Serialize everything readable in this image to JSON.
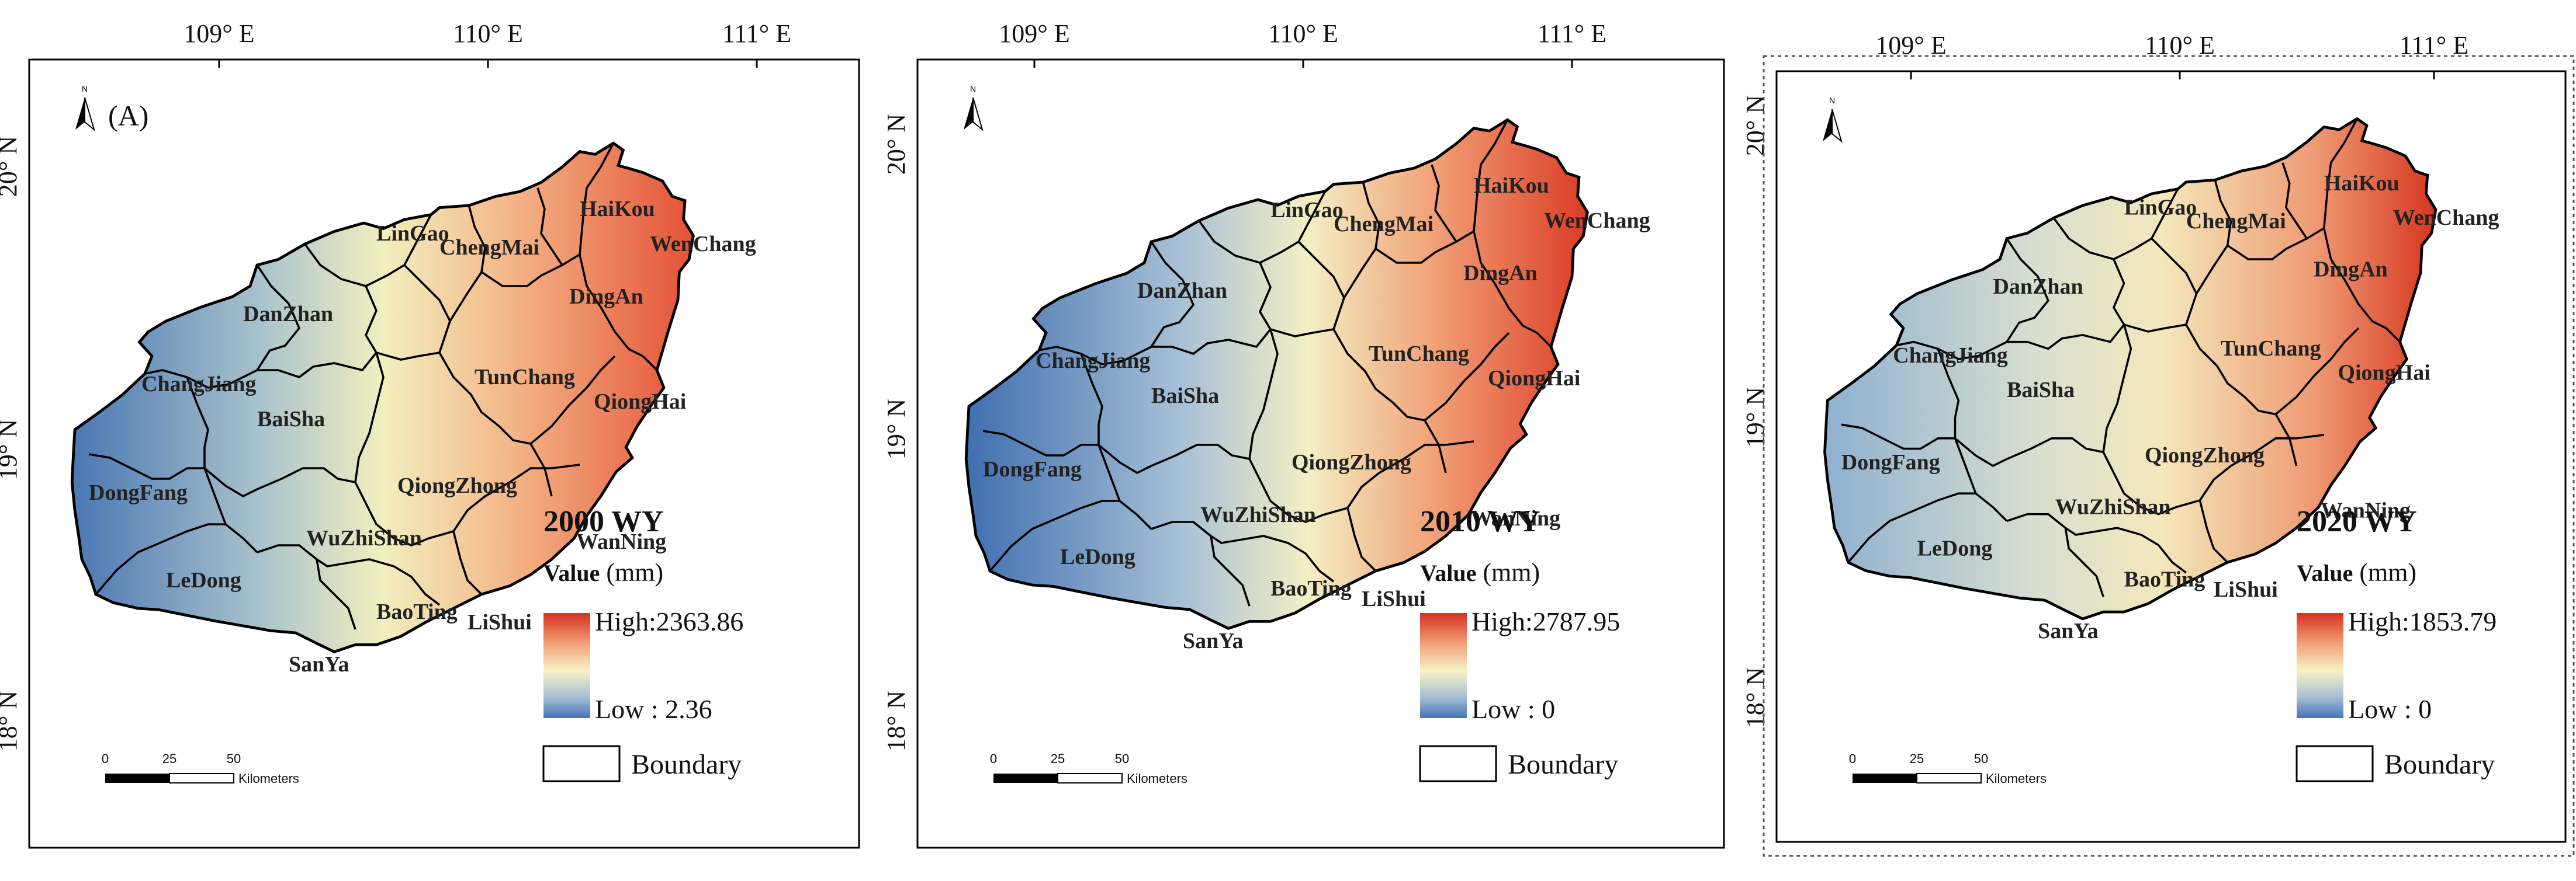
{
  "longitude_labels": [
    "109° E",
    "110° E",
    "111° E"
  ],
  "latitude_labels": [
    "20° N",
    "19° N",
    "18° N"
  ],
  "north_arrow_letter": "N",
  "scale_bar": {
    "ticks": [
      "0",
      "25",
      "50"
    ],
    "unit": "Kilometers"
  },
  "legend": {
    "title_bold": "Value",
    "title_unit": "(mm)",
    "boundary_label": "Boundary"
  },
  "counties": [
    "LinGao",
    "HaiKou",
    "ChengMai",
    "WenChang",
    "DanZhan",
    "DingAn",
    "TunChang",
    "ChangJiang",
    "QiongHai",
    "BaiSha",
    "DongFang",
    "QiongZhong",
    "WuZhiShan",
    "WanNing",
    "LeDong",
    "BaoTing",
    "LiShui",
    "SanYa"
  ],
  "panels": [
    {
      "panel_label": "(A)",
      "year_title": "2000 WY",
      "high_label": "High:2363.86",
      "low_label": "Low : 2.36"
    },
    {
      "panel_label": "",
      "year_title": "2010 WY",
      "high_label": "High:2787.95",
      "low_label": "Low : 0"
    },
    {
      "panel_label": "",
      "year_title": "2020 WY",
      "high_label": "High:1853.79",
      "low_label": "Low : 0"
    }
  ],
  "colors": {
    "high": "#d7301f",
    "mid": "#f5f3c8",
    "low": "#4575b4",
    "frame": "#000000"
  }
}
